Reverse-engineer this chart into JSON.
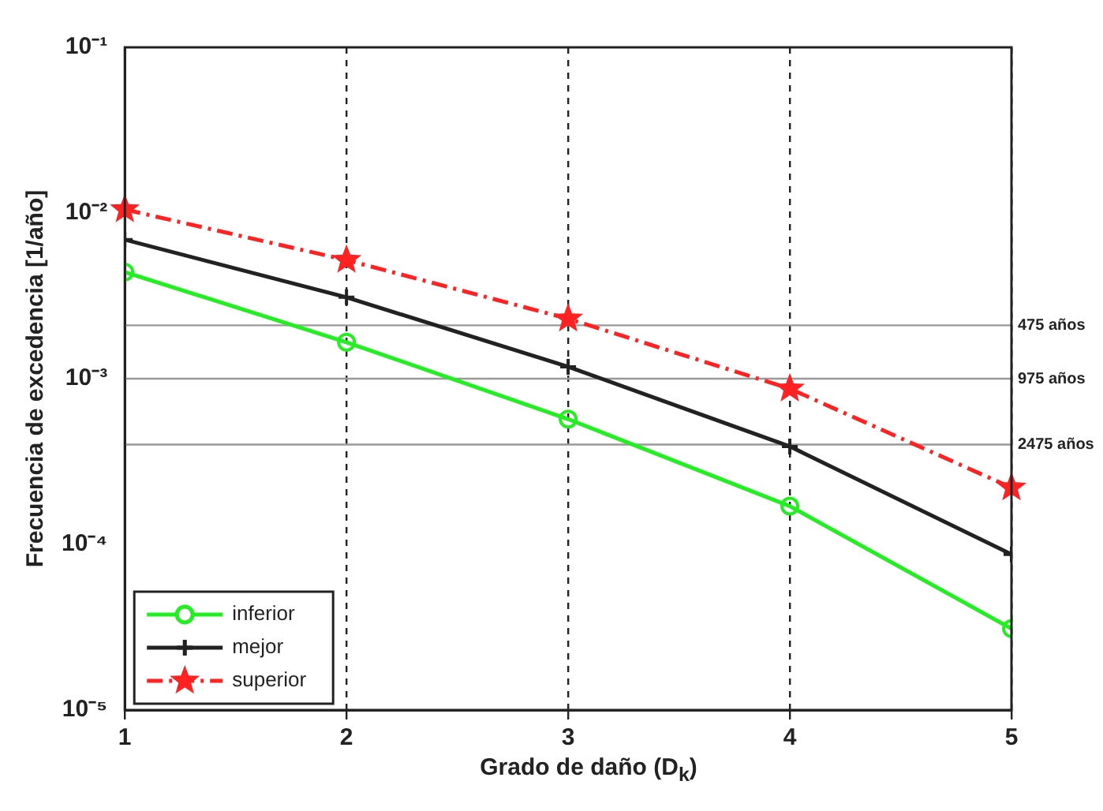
{
  "chart_data": {
    "type": "line",
    "xlabel": "Grado de daño (D$_{k}$)",
    "ylabel": "Frecuencia de excedencia [1/año]",
    "x": [
      1,
      2,
      3,
      4,
      5
    ],
    "xlim": [
      1,
      5
    ],
    "xticks": [
      1,
      2,
      3,
      4,
      5
    ],
    "ylim": [
      1e-05,
      0.1
    ],
    "yticks": [
      {
        "value": 1e-05,
        "label": "10⁻⁵"
      },
      {
        "value": 0.0001,
        "label": "10⁻⁴"
      },
      {
        "value": 0.001,
        "label": "10⁻³"
      },
      {
        "value": 0.01,
        "label": "10⁻²"
      },
      {
        "value": 0.1,
        "label": "10⁻¹"
      }
    ],
    "log": "y",
    "grid": "x",
    "legend": "bottom left",
    "series": [
      {
        "name": "inferior",
        "color": "#22ee22",
        "marker": "circle",
        "line_style": "solid",
        "values": [
          0.0044,
          0.00166,
          0.00057,
          0.00017,
          3.1e-05
        ]
      },
      {
        "name": "mejor",
        "color": "#222222",
        "marker": "cross",
        "line_style": "solid",
        "values": [
          0.0069,
          0.0031,
          0.00118,
          0.00039,
          8.7e-05
        ]
      },
      {
        "name": "superior",
        "color": "#ff2222",
        "marker": "star",
        "line_style": "dashed",
        "values": [
          0.0105,
          0.0052,
          0.0023,
          0.00087,
          0.00022
        ]
      }
    ],
    "ref_lines": [
      {
        "axis": "y",
        "value": 0.0021,
        "label": "475 años",
        "color": "#999999"
      },
      {
        "axis": "y",
        "value": 0.001,
        "label": "975 años",
        "color": "#999999"
      },
      {
        "axis": "y",
        "value": 0.0004,
        "label": "2475 años",
        "color": "#999999"
      }
    ]
  }
}
